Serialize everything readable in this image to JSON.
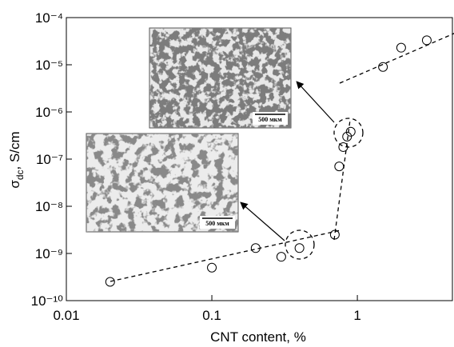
{
  "chart_data": {
    "type": "scatter",
    "x_label": "CNT content, %",
    "y_label": {
      "symbol": "σ",
      "subscript": "dc",
      "unit": ", S/cm"
    },
    "x": [
      0.02,
      0.1,
      0.2,
      0.3,
      0.4,
      0.7,
      0.75,
      0.8,
      0.85,
      0.9,
      1.5,
      2,
      3
    ],
    "values": [
      2.5e-10,
      5e-10,
      1.3e-09,
      8.5e-10,
      1.3e-09,
      2.5e-09,
      7e-08,
      1.8e-07,
      3e-07,
      3.8e-07,
      9e-06,
      2.3e-05,
      3.3e-05
    ],
    "color": "#000000",
    "xscale": "log",
    "yscale": "log",
    "xlim": [
      0.01,
      4.5
    ],
    "ylim": [
      1e-10,
      0.0001
    ],
    "xticks": [
      {
        "value": 0.01,
        "label": "0.01"
      },
      {
        "value": 0.1,
        "label": "0.1"
      },
      1
    ],
    "yticks": [
      {
        "value": 1e-10,
        "label": "10⁻¹⁰"
      },
      {
        "value": 1e-09,
        "label": "10⁻⁹"
      },
      {
        "value": 1e-08,
        "label": "10⁻⁸"
      },
      {
        "value": 1e-07,
        "label": "10⁻⁷"
      },
      {
        "value": 1e-06,
        "label": "10⁻⁶"
      },
      {
        "value": 1e-05,
        "label": "10⁻⁵"
      },
      {
        "value": 0.0001,
        "label": "10⁻⁴"
      }
    ],
    "insets": [
      {
        "scale_label": "500 мкм"
      },
      {
        "scale_label": "500 мкм"
      }
    ]
  }
}
